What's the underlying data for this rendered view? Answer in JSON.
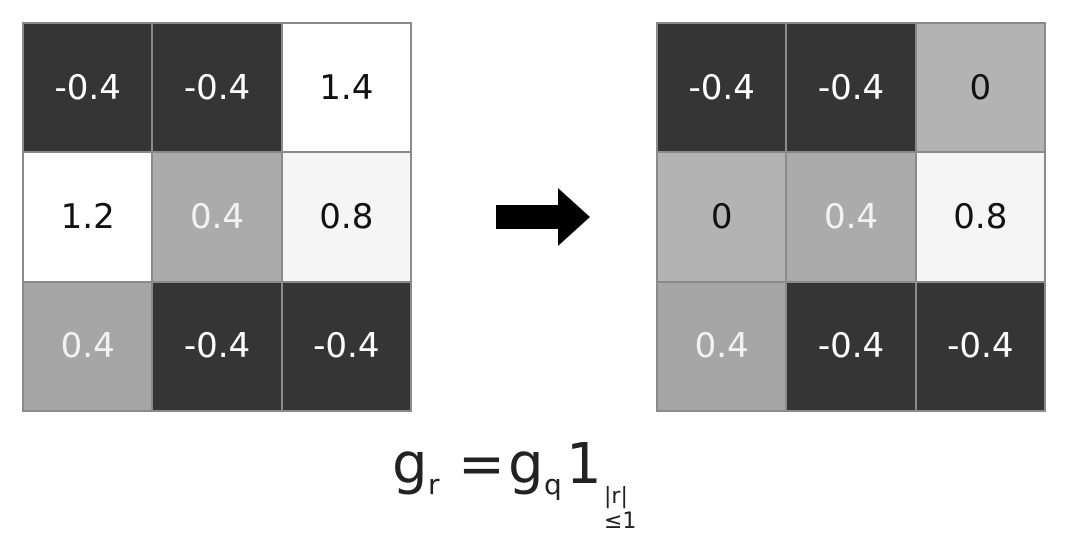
{
  "before_grid": {
    "cells": [
      {
        "text": "-0.4",
        "bg": "#353535",
        "fg": "#ffffff"
      },
      {
        "text": "-0.4",
        "bg": "#353535",
        "fg": "#ffffff"
      },
      {
        "text": "1.4",
        "bg": "#ffffff",
        "fg": "#111111"
      },
      {
        "text": "1.2",
        "bg": "#ffffff",
        "fg": "#111111"
      },
      {
        "text": "0.4",
        "bg": "#ababab",
        "fg": "#f2f2f2"
      },
      {
        "text": "0.8",
        "bg": "#f5f5f5",
        "fg": "#111111"
      },
      {
        "text": "0.4",
        "bg": "#a6a6a6",
        "fg": "#f2f2f2"
      },
      {
        "text": "-0.4",
        "bg": "#353535",
        "fg": "#ffffff"
      },
      {
        "text": "-0.4",
        "bg": "#353535",
        "fg": "#ffffff"
      }
    ]
  },
  "after_grid": {
    "cells": [
      {
        "text": "-0.4",
        "bg": "#353535",
        "fg": "#ffffff"
      },
      {
        "text": "-0.4",
        "bg": "#353535",
        "fg": "#ffffff"
      },
      {
        "text": "0",
        "bg": "#b3b3b3",
        "fg": "#111111"
      },
      {
        "text": "0",
        "bg": "#b3b3b3",
        "fg": "#111111"
      },
      {
        "text": "0.4",
        "bg": "#ababab",
        "fg": "#f2f2f2"
      },
      {
        "text": "0.8",
        "bg": "#f5f5f5",
        "fg": "#111111"
      },
      {
        "text": "0.4",
        "bg": "#a6a6a6",
        "fg": "#f2f2f2"
      },
      {
        "text": "-0.4",
        "bg": "#353535",
        "fg": "#ffffff"
      },
      {
        "text": "-0.4",
        "bg": "#353535",
        "fg": "#ffffff"
      }
    ]
  },
  "arrow": {
    "icon": "right-arrow-icon",
    "color": "#000000"
  },
  "formula": {
    "g_r_base": "g",
    "g_r_sub": "r",
    "equals": "=",
    "g_q_base": "g",
    "g_q_sub": "q",
    "indicator": "1",
    "indicator_sub": "|r|≤1"
  }
}
